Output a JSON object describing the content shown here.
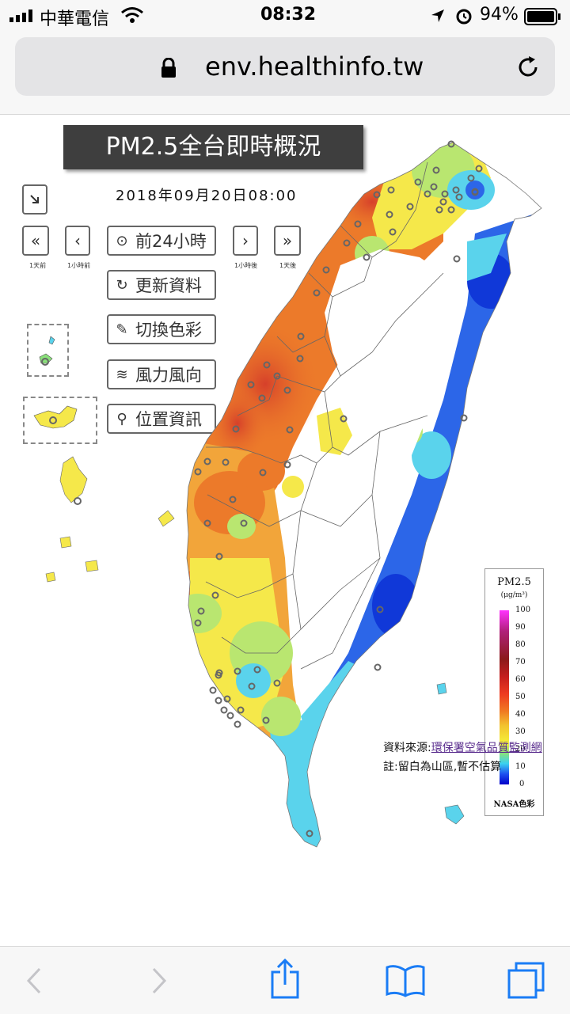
{
  "status_bar": {
    "carrier": "中華電信",
    "time": "08:32",
    "battery": "94%"
  },
  "browser": {
    "url": "env.healthinfo.tw",
    "reload_icon": "reload-icon",
    "lock_icon": "lock-icon"
  },
  "page": {
    "title": "PM2.5全台即時概況",
    "timestamp": "2018年09月20日08:00",
    "nav": {
      "day_back": "1天前",
      "hour_back": "1小時前",
      "hour_fwd": "1小時後",
      "day_fwd": "1天後",
      "play_24h": "前24小時"
    },
    "buttons": {
      "refresh": "更新資料",
      "color_switch": "切換色彩",
      "wind": "風力風向",
      "location": "位置資訊"
    },
    "legend": {
      "title": "PM2.5",
      "unit": "(μg/m³)",
      "ticks": [
        "100",
        "90",
        "80",
        "70",
        "60",
        "50",
        "40",
        "30",
        "20",
        "10",
        "0"
      ],
      "footer": "NASA色彩",
      "colors": [
        "#ff33ff",
        "#b0207a",
        "#8b1a1a",
        "#c41e1e",
        "#ee3b20",
        "#f07a22",
        "#f2c12e",
        "#f5ef38",
        "#8ae07a",
        "#3ad2f0",
        "#1e50f0",
        "#0000c8"
      ]
    },
    "source": {
      "label": "資料來源:",
      "link": "環保署空氣品質監測網",
      "note": "註:留白為山區,暫不估算"
    },
    "map_colors": {
      "darkred": "#d6402a",
      "orange": "#ec7a2a",
      "amber": "#f2a53a",
      "yellow": "#f5e84a",
      "lime": "#b9e670",
      "cyan": "#5ad3ec",
      "blue": "#2c66e8",
      "deepblue": "#1038d8"
    }
  }
}
